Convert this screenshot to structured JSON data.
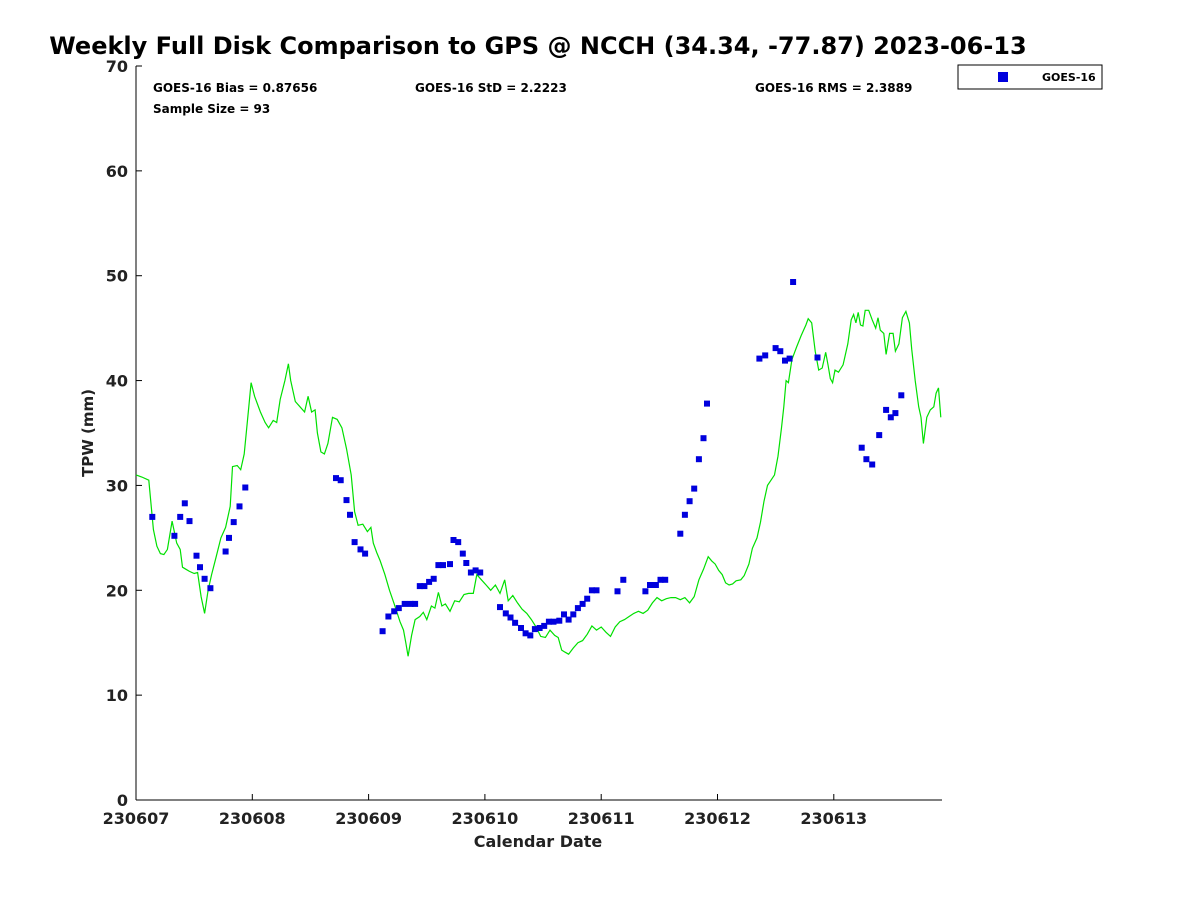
{
  "chart_data": {
    "type": "scatter",
    "title": "Weekly Full Disk Comparison to GPS @ NCCH (34.34, -77.87) 2023-06-13",
    "xlabel": "Calendar Date",
    "ylabel": "TPW (mm)",
    "xlim": [
      0,
      6.93
    ],
    "ylim": [
      0,
      70
    ],
    "x_tick_labels": [
      "230607",
      "230608",
      "230609",
      "230610",
      "230611",
      "230612",
      "230613"
    ],
    "x_tick_values": [
      0,
      1,
      2,
      3,
      4,
      5,
      6
    ],
    "y_ticks": [
      0,
      10,
      20,
      30,
      40,
      50,
      60,
      70
    ],
    "grid": false,
    "legend_position": "top-right",
    "stats": {
      "bias": "GOES-16 Bias = 0.87656",
      "std": "GOES-16 StD = 2.2223",
      "rms": "GOES-16 RMS = 2.3889",
      "sample_size": "Sample Size = 93"
    },
    "colors": {
      "goes16": "#0000dd",
      "gps": "#00e000",
      "axis": "#000000"
    },
    "series": [
      {
        "name": "GOES-16",
        "marker": "square",
        "points": [
          [
            0.14,
            27.0
          ],
          [
            0.33,
            25.2
          ],
          [
            0.38,
            27.0
          ],
          [
            0.42,
            28.3
          ],
          [
            0.46,
            26.6
          ],
          [
            0.52,
            23.3
          ],
          [
            0.55,
            22.2
          ],
          [
            0.59,
            21.1
          ],
          [
            0.64,
            20.2
          ],
          [
            0.77,
            23.7
          ],
          [
            0.8,
            25.0
          ],
          [
            0.84,
            26.5
          ],
          [
            0.89,
            28.0
          ],
          [
            0.94,
            29.8
          ],
          [
            1.72,
            30.7
          ],
          [
            1.76,
            30.5
          ],
          [
            1.81,
            28.6
          ],
          [
            1.84,
            27.2
          ],
          [
            1.88,
            24.6
          ],
          [
            1.93,
            23.9
          ],
          [
            1.97,
            23.5
          ],
          [
            2.12,
            16.1
          ],
          [
            2.17,
            17.5
          ],
          [
            2.22,
            18.0
          ],
          [
            2.26,
            18.3
          ],
          [
            2.31,
            18.7
          ],
          [
            2.36,
            18.7
          ],
          [
            2.4,
            18.7
          ],
          [
            2.44,
            20.4
          ],
          [
            2.48,
            20.4
          ],
          [
            2.52,
            20.8
          ],
          [
            2.56,
            21.1
          ],
          [
            2.6,
            22.4
          ],
          [
            2.64,
            22.4
          ],
          [
            2.7,
            22.5
          ],
          [
            2.73,
            24.8
          ],
          [
            2.77,
            24.6
          ],
          [
            2.81,
            23.5
          ],
          [
            2.84,
            22.6
          ],
          [
            2.88,
            21.7
          ],
          [
            2.92,
            21.9
          ],
          [
            2.96,
            21.7
          ],
          [
            3.13,
            18.4
          ],
          [
            3.18,
            17.8
          ],
          [
            3.22,
            17.4
          ],
          [
            3.26,
            16.9
          ],
          [
            3.31,
            16.4
          ],
          [
            3.35,
            15.9
          ],
          [
            3.39,
            15.7
          ],
          [
            3.43,
            16.3
          ],
          [
            3.47,
            16.4
          ],
          [
            3.51,
            16.6
          ],
          [
            3.55,
            17.0
          ],
          [
            3.59,
            17.0
          ],
          [
            3.64,
            17.1
          ],
          [
            3.68,
            17.7
          ],
          [
            3.72,
            17.2
          ],
          [
            3.76,
            17.7
          ],
          [
            3.8,
            18.3
          ],
          [
            3.84,
            18.7
          ],
          [
            3.88,
            19.2
          ],
          [
            3.92,
            20.0
          ],
          [
            3.96,
            20.0
          ],
          [
            4.14,
            19.9
          ],
          [
            4.19,
            21.0
          ],
          [
            4.38,
            19.9
          ],
          [
            4.42,
            20.5
          ],
          [
            4.47,
            20.5
          ],
          [
            4.51,
            21.0
          ],
          [
            4.55,
            21.0
          ],
          [
            4.68,
            25.4
          ],
          [
            4.72,
            27.2
          ],
          [
            4.76,
            28.5
          ],
          [
            4.8,
            29.7
          ],
          [
            4.84,
            32.5
          ],
          [
            4.88,
            34.5
          ],
          [
            4.91,
            37.8
          ],
          [
            5.36,
            42.1
          ],
          [
            5.41,
            42.4
          ],
          [
            5.5,
            43.1
          ],
          [
            5.54,
            42.8
          ],
          [
            5.58,
            41.9
          ],
          [
            5.62,
            42.1
          ],
          [
            5.65,
            49.4
          ],
          [
            5.86,
            42.2
          ],
          [
            6.24,
            33.6
          ],
          [
            6.28,
            32.5
          ],
          [
            6.33,
            32.0
          ],
          [
            6.39,
            34.8
          ],
          [
            6.45,
            37.2
          ],
          [
            6.49,
            36.5
          ],
          [
            6.53,
            36.9
          ],
          [
            6.58,
            38.6
          ]
        ]
      },
      {
        "name": "GPS",
        "marker": "line",
        "points": [
          [
            0.0,
            31.0
          ],
          [
            0.05,
            30.8
          ],
          [
            0.11,
            30.5
          ],
          [
            0.15,
            25.8
          ],
          [
            0.18,
            24.2
          ],
          [
            0.21,
            23.5
          ],
          [
            0.24,
            23.4
          ],
          [
            0.27,
            23.9
          ],
          [
            0.31,
            26.6
          ],
          [
            0.35,
            24.5
          ],
          [
            0.38,
            23.9
          ],
          [
            0.4,
            22.2
          ],
          [
            0.43,
            22.0
          ],
          [
            0.46,
            21.8
          ],
          [
            0.5,
            21.6
          ],
          [
            0.53,
            21.7
          ],
          [
            0.56,
            19.4
          ],
          [
            0.59,
            17.8
          ],
          [
            0.62,
            20.0
          ],
          [
            0.65,
            21.5
          ],
          [
            0.69,
            23.2
          ],
          [
            0.73,
            25.0
          ],
          [
            0.77,
            26.0
          ],
          [
            0.81,
            28.0
          ],
          [
            0.83,
            31.8
          ],
          [
            0.87,
            31.9
          ],
          [
            0.9,
            31.5
          ],
          [
            0.93,
            33.0
          ],
          [
            0.97,
            37.5
          ],
          [
            0.99,
            39.8
          ],
          [
            1.02,
            38.5
          ],
          [
            1.07,
            37.0
          ],
          [
            1.11,
            36.0
          ],
          [
            1.14,
            35.5
          ],
          [
            1.18,
            36.2
          ],
          [
            1.21,
            36.0
          ],
          [
            1.24,
            38.2
          ],
          [
            1.28,
            40.0
          ],
          [
            1.31,
            41.6
          ],
          [
            1.33,
            40.0
          ],
          [
            1.37,
            38.0
          ],
          [
            1.41,
            37.5
          ],
          [
            1.45,
            37.0
          ],
          [
            1.48,
            38.5
          ],
          [
            1.51,
            37.0
          ],
          [
            1.54,
            37.2
          ],
          [
            1.56,
            35.0
          ],
          [
            1.59,
            33.2
          ],
          [
            1.62,
            33.0
          ],
          [
            1.65,
            34.0
          ],
          [
            1.69,
            36.5
          ],
          [
            1.73,
            36.3
          ],
          [
            1.77,
            35.5
          ],
          [
            1.81,
            33.5
          ],
          [
            1.85,
            31.0
          ],
          [
            1.88,
            27.5
          ],
          [
            1.91,
            26.2
          ],
          [
            1.95,
            26.3
          ],
          [
            1.99,
            25.6
          ],
          [
            2.02,
            26.0
          ],
          [
            2.04,
            24.5
          ],
          [
            2.07,
            23.6
          ],
          [
            2.1,
            22.8
          ],
          [
            2.14,
            21.5
          ],
          [
            2.18,
            20.0
          ],
          [
            2.22,
            18.7
          ],
          [
            2.27,
            17.0
          ],
          [
            2.3,
            16.2
          ],
          [
            2.32,
            15.0
          ],
          [
            2.34,
            13.7
          ],
          [
            2.37,
            15.7
          ],
          [
            2.4,
            17.2
          ],
          [
            2.44,
            17.5
          ],
          [
            2.47,
            17.9
          ],
          [
            2.5,
            17.2
          ],
          [
            2.54,
            18.5
          ],
          [
            2.57,
            18.3
          ],
          [
            2.6,
            19.8
          ],
          [
            2.63,
            18.5
          ],
          [
            2.66,
            18.7
          ],
          [
            2.7,
            18.0
          ],
          [
            2.74,
            19.0
          ],
          [
            2.78,
            18.9
          ],
          [
            2.82,
            19.6
          ],
          [
            2.86,
            19.7
          ],
          [
            2.9,
            19.7
          ],
          [
            2.93,
            21.5
          ],
          [
            2.97,
            21.0
          ],
          [
            3.01,
            20.5
          ],
          [
            3.05,
            20.0
          ],
          [
            3.09,
            20.5
          ],
          [
            3.13,
            19.7
          ],
          [
            3.17,
            21.0
          ],
          [
            3.2,
            19.0
          ],
          [
            3.24,
            19.5
          ],
          [
            3.28,
            18.8
          ],
          [
            3.32,
            18.2
          ],
          [
            3.36,
            17.8
          ],
          [
            3.4,
            17.2
          ],
          [
            3.44,
            16.5
          ],
          [
            3.48,
            15.6
          ],
          [
            3.52,
            15.5
          ],
          [
            3.56,
            16.2
          ],
          [
            3.6,
            15.7
          ],
          [
            3.63,
            15.5
          ],
          [
            3.66,
            14.3
          ],
          [
            3.69,
            14.1
          ],
          [
            3.72,
            13.9
          ],
          [
            3.76,
            14.5
          ],
          [
            3.8,
            15.0
          ],
          [
            3.84,
            15.2
          ],
          [
            3.88,
            15.8
          ],
          [
            3.92,
            16.6
          ],
          [
            3.96,
            16.2
          ],
          [
            4.0,
            16.5
          ],
          [
            4.04,
            16.0
          ],
          [
            4.08,
            15.6
          ],
          [
            4.12,
            16.5
          ],
          [
            4.16,
            17.0
          ],
          [
            4.2,
            17.2
          ],
          [
            4.24,
            17.5
          ],
          [
            4.28,
            17.8
          ],
          [
            4.32,
            18.0
          ],
          [
            4.36,
            17.8
          ],
          [
            4.4,
            18.1
          ],
          [
            4.44,
            18.8
          ],
          [
            4.48,
            19.3
          ],
          [
            4.52,
            19.0
          ],
          [
            4.56,
            19.2
          ],
          [
            4.6,
            19.3
          ],
          [
            4.64,
            19.3
          ],
          [
            4.68,
            19.1
          ],
          [
            4.72,
            19.3
          ],
          [
            4.76,
            18.8
          ],
          [
            4.8,
            19.4
          ],
          [
            4.84,
            21.0
          ],
          [
            4.88,
            22.0
          ],
          [
            4.92,
            23.2
          ],
          [
            4.95,
            22.8
          ],
          [
            4.98,
            22.5
          ],
          [
            5.01,
            21.9
          ],
          [
            5.04,
            21.5
          ],
          [
            5.07,
            20.7
          ],
          [
            5.1,
            20.5
          ],
          [
            5.13,
            20.6
          ],
          [
            5.16,
            20.9
          ],
          [
            5.2,
            21.0
          ],
          [
            5.23,
            21.4
          ],
          [
            5.27,
            22.5
          ],
          [
            5.3,
            24.0
          ],
          [
            5.34,
            25.0
          ],
          [
            5.37,
            26.5
          ],
          [
            5.4,
            28.5
          ],
          [
            5.43,
            30.0
          ],
          [
            5.46,
            30.5
          ],
          [
            5.49,
            31.0
          ],
          [
            5.52,
            32.8
          ],
          [
            5.55,
            35.5
          ],
          [
            5.57,
            37.5
          ],
          [
            5.59,
            40.0
          ],
          [
            5.61,
            39.8
          ],
          [
            5.64,
            42.0
          ],
          [
            5.68,
            43.2
          ],
          [
            5.72,
            44.3
          ],
          [
            5.76,
            45.3
          ],
          [
            5.78,
            45.9
          ],
          [
            5.81,
            45.5
          ],
          [
            5.84,
            42.8
          ],
          [
            5.87,
            41.0
          ],
          [
            5.9,
            41.2
          ],
          [
            5.93,
            42.7
          ],
          [
            5.95,
            41.5
          ],
          [
            5.97,
            40.2
          ],
          [
            5.99,
            39.8
          ],
          [
            6.01,
            41.0
          ],
          [
            6.04,
            40.8
          ],
          [
            6.08,
            41.5
          ],
          [
            6.12,
            43.5
          ],
          [
            6.15,
            45.8
          ],
          [
            6.17,
            46.3
          ],
          [
            6.19,
            45.5
          ],
          [
            6.21,
            46.5
          ],
          [
            6.23,
            45.3
          ],
          [
            6.25,
            45.2
          ],
          [
            6.27,
            46.7
          ],
          [
            6.3,
            46.7
          ],
          [
            6.33,
            45.8
          ],
          [
            6.36,
            45.0
          ],
          [
            6.38,
            46.0
          ],
          [
            6.4,
            44.8
          ],
          [
            6.43,
            44.5
          ],
          [
            6.45,
            42.5
          ],
          [
            6.48,
            44.5
          ],
          [
            6.51,
            44.5
          ],
          [
            6.53,
            42.8
          ],
          [
            6.56,
            43.5
          ],
          [
            6.59,
            46.0
          ],
          [
            6.62,
            46.6
          ],
          [
            6.65,
            45.5
          ],
          [
            6.67,
            43.0
          ],
          [
            6.7,
            40.0
          ],
          [
            6.73,
            37.5
          ],
          [
            6.75,
            36.5
          ],
          [
            6.77,
            34.0
          ],
          [
            6.8,
            36.5
          ],
          [
            6.83,
            37.2
          ],
          [
            6.86,
            37.5
          ],
          [
            6.88,
            38.8
          ],
          [
            6.9,
            39.3
          ],
          [
            6.92,
            36.5
          ]
        ]
      }
    ]
  }
}
